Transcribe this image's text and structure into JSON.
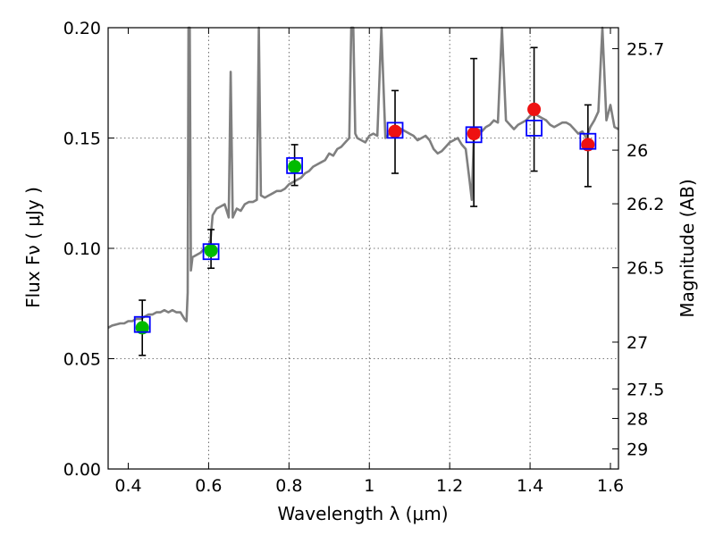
{
  "chart_data": {
    "type": "scatter",
    "xlabel": "Wavelength  λ (μm)",
    "ylabel": "Flux  Fν  ( μJy )",
    "ylabel_right": "Magnitude (AB)",
    "xlim": [
      0.35,
      1.62
    ],
    "ylim": [
      0.0,
      0.2
    ],
    "grid": true,
    "x_ticks": [
      0.4,
      0.6,
      0.8,
      1.0,
      1.2,
      1.4,
      1.6
    ],
    "x_tick_labels": [
      "0.4",
      "0.6",
      "0.8",
      "1",
      "1.2",
      "1.4",
      "1.6"
    ],
    "y_ticks": [
      0.0,
      0.05,
      0.1,
      0.15,
      0.2
    ],
    "y_tick_labels": [
      "0.00",
      "0.05",
      "0.10",
      "0.15",
      "0.20"
    ],
    "right_ticks": [
      {
        "label": "25.7",
        "flux": 0.1905
      },
      {
        "label": "26",
        "flux": 0.1445
      },
      {
        "label": "26.2",
        "flux": 0.1202
      },
      {
        "label": "26.5",
        "flux": 0.0912
      },
      {
        "label": "27",
        "flux": 0.0575
      },
      {
        "label": "27.5",
        "flux": 0.0363
      },
      {
        "label": "28",
        "flux": 0.0229
      },
      {
        "label": "29",
        "flux": 0.0091
      }
    ],
    "colors": {
      "template": "#7f7f7f",
      "model_box": "#0000ff",
      "detection_green": "#00bb00",
      "detection_red": "#ee1111",
      "errorbar": "#000000"
    },
    "series": [
      {
        "kind": "observed",
        "points": [
          {
            "x": 0.435,
            "y": 0.064,
            "yerr_low": 0.0125,
            "yerr_high": 0.0125,
            "color": "green"
          },
          {
            "x": 0.606,
            "y": 0.099,
            "yerr_low": 0.008,
            "yerr_high": 0.0095,
            "color": "green"
          },
          {
            "x": 0.814,
            "y": 0.137,
            "yerr_low": 0.0085,
            "yerr_high": 0.01,
            "color": "green"
          },
          {
            "x": 1.064,
            "y": 0.153,
            "yerr_low": 0.019,
            "yerr_high": 0.0185,
            "color": "red"
          },
          {
            "x": 1.26,
            "y": 0.152,
            "yerr_low": 0.033,
            "yerr_high": 0.034,
            "color": "red"
          },
          {
            "x": 1.41,
            "y": 0.163,
            "yerr_low": 0.028,
            "yerr_high": 0.028,
            "color": "red"
          },
          {
            "x": 1.544,
            "y": 0.147,
            "yerr_low": 0.019,
            "yerr_high": 0.018,
            "color": "red"
          }
        ]
      },
      {
        "kind": "model_photometry",
        "points": [
          {
            "x": 0.435,
            "y": 0.0655
          },
          {
            "x": 0.606,
            "y": 0.0985
          },
          {
            "x": 0.814,
            "y": 0.1375
          },
          {
            "x": 1.064,
            "y": 0.1535
          },
          {
            "x": 1.26,
            "y": 0.1515
          },
          {
            "x": 1.41,
            "y": 0.1545
          },
          {
            "x": 1.544,
            "y": 0.1485
          }
        ]
      },
      {
        "kind": "template_spectrum",
        "points": [
          [
            0.35,
            0.064
          ],
          [
            0.36,
            0.065
          ],
          [
            0.37,
            0.0655
          ],
          [
            0.38,
            0.066
          ],
          [
            0.39,
            0.066
          ],
          [
            0.4,
            0.067
          ],
          [
            0.41,
            0.067
          ],
          [
            0.42,
            0.068
          ],
          [
            0.43,
            0.068
          ],
          [
            0.44,
            0.069
          ],
          [
            0.45,
            0.07
          ],
          [
            0.46,
            0.07
          ],
          [
            0.47,
            0.071
          ],
          [
            0.48,
            0.071
          ],
          [
            0.49,
            0.072
          ],
          [
            0.5,
            0.071
          ],
          [
            0.51,
            0.072
          ],
          [
            0.52,
            0.071
          ],
          [
            0.53,
            0.071
          ],
          [
            0.54,
            0.068
          ],
          [
            0.545,
            0.067
          ],
          [
            0.548,
            0.08
          ],
          [
            0.55,
            0.2
          ],
          [
            0.553,
            0.2
          ],
          [
            0.556,
            0.09
          ],
          [
            0.56,
            0.096
          ],
          [
            0.57,
            0.097
          ],
          [
            0.58,
            0.098
          ],
          [
            0.59,
            0.1
          ],
          [
            0.6,
            0.101
          ],
          [
            0.605,
            0.104
          ],
          [
            0.61,
            0.115
          ],
          [
            0.62,
            0.118
          ],
          [
            0.63,
            0.119
          ],
          [
            0.64,
            0.12
          ],
          [
            0.65,
            0.114
          ],
          [
            0.655,
            0.18
          ],
          [
            0.66,
            0.114
          ],
          [
            0.67,
            0.118
          ],
          [
            0.68,
            0.117
          ],
          [
            0.69,
            0.12
          ],
          [
            0.7,
            0.121
          ],
          [
            0.71,
            0.121
          ],
          [
            0.72,
            0.122
          ],
          [
            0.725,
            0.2
          ],
          [
            0.73,
            0.124
          ],
          [
            0.74,
            0.123
          ],
          [
            0.75,
            0.124
          ],
          [
            0.76,
            0.125
          ],
          [
            0.77,
            0.126
          ],
          [
            0.78,
            0.126
          ],
          [
            0.79,
            0.127
          ],
          [
            0.8,
            0.129
          ],
          [
            0.81,
            0.13
          ],
          [
            0.82,
            0.131
          ],
          [
            0.83,
            0.132
          ],
          [
            0.84,
            0.134
          ],
          [
            0.85,
            0.135
          ],
          [
            0.86,
            0.137
          ],
          [
            0.87,
            0.138
          ],
          [
            0.88,
            0.139
          ],
          [
            0.89,
            0.14
          ],
          [
            0.9,
            0.143
          ],
          [
            0.91,
            0.142
          ],
          [
            0.92,
            0.145
          ],
          [
            0.93,
            0.146
          ],
          [
            0.94,
            0.148
          ],
          [
            0.95,
            0.15
          ],
          [
            0.955,
            0.2
          ],
          [
            0.96,
            0.2
          ],
          [
            0.965,
            0.152
          ],
          [
            0.97,
            0.15
          ],
          [
            0.98,
            0.149
          ],
          [
            0.99,
            0.148
          ],
          [
            1.0,
            0.151
          ],
          [
            1.01,
            0.152
          ],
          [
            1.02,
            0.151
          ],
          [
            1.03,
            0.2
          ],
          [
            1.04,
            0.15
          ],
          [
            1.05,
            0.152
          ],
          [
            1.06,
            0.154
          ],
          [
            1.07,
            0.155
          ],
          [
            1.08,
            0.154
          ],
          [
            1.09,
            0.153
          ],
          [
            1.1,
            0.152
          ],
          [
            1.11,
            0.151
          ],
          [
            1.12,
            0.149
          ],
          [
            1.13,
            0.15
          ],
          [
            1.14,
            0.151
          ],
          [
            1.15,
            0.149
          ],
          [
            1.16,
            0.145
          ],
          [
            1.17,
            0.143
          ],
          [
            1.18,
            0.144
          ],
          [
            1.19,
            0.146
          ],
          [
            1.2,
            0.148
          ],
          [
            1.21,
            0.149
          ],
          [
            1.22,
            0.15
          ],
          [
            1.23,
            0.147
          ],
          [
            1.24,
            0.145
          ],
          [
            1.25,
            0.13
          ],
          [
            1.255,
            0.122
          ],
          [
            1.26,
            0.15
          ],
          [
            1.27,
            0.154
          ],
          [
            1.28,
            0.153
          ],
          [
            1.29,
            0.155
          ],
          [
            1.3,
            0.156
          ],
          [
            1.31,
            0.158
          ],
          [
            1.32,
            0.157
          ],
          [
            1.33,
            0.2
          ],
          [
            1.34,
            0.158
          ],
          [
            1.35,
            0.156
          ],
          [
            1.36,
            0.154
          ],
          [
            1.37,
            0.156
          ],
          [
            1.38,
            0.157
          ],
          [
            1.39,
            0.158
          ],
          [
            1.4,
            0.16
          ],
          [
            1.41,
            0.161
          ],
          [
            1.42,
            0.16
          ],
          [
            1.43,
            0.159
          ],
          [
            1.44,
            0.158
          ],
          [
            1.45,
            0.156
          ],
          [
            1.46,
            0.155
          ],
          [
            1.47,
            0.156
          ],
          [
            1.48,
            0.157
          ],
          [
            1.49,
            0.157
          ],
          [
            1.5,
            0.156
          ],
          [
            1.51,
            0.154
          ],
          [
            1.52,
            0.152
          ],
          [
            1.53,
            0.153
          ],
          [
            1.54,
            0.15
          ],
          [
            1.55,
            0.155
          ],
          [
            1.56,
            0.158
          ],
          [
            1.57,
            0.162
          ],
          [
            1.58,
            0.2
          ],
          [
            1.59,
            0.158
          ],
          [
            1.6,
            0.165
          ],
          [
            1.61,
            0.155
          ],
          [
            1.62,
            0.154
          ]
        ]
      }
    ]
  }
}
